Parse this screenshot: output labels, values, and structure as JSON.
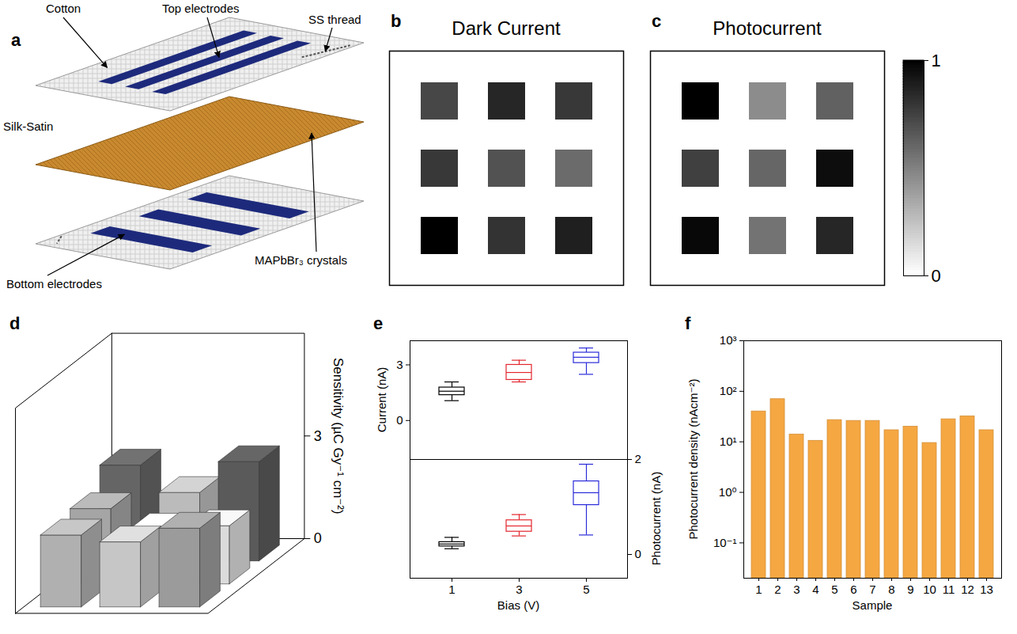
{
  "diagram": {
    "panel": "a",
    "labels": {
      "cotton": "Cotton",
      "top_electrodes": "Top electrodes",
      "ss_thread": "SS thread",
      "silk_satin": "Silk-Satin",
      "crystals": "MAPbBr₃ crystals",
      "bottom_electrodes": "Bottom electrodes"
    }
  },
  "chart_data": [
    {
      "panel": "b",
      "type": "heatmap",
      "title": "Dark Current",
      "cells": [
        [
          0.72,
          0.85,
          0.78
        ],
        [
          0.78,
          0.68,
          0.58
        ],
        [
          1.0,
          0.8,
          0.88
        ]
      ],
      "color_range": [
        0,
        1
      ]
    },
    {
      "panel": "c",
      "type": "heatmap",
      "title": "Photocurrent",
      "cells": [
        [
          1.0,
          0.45,
          0.62
        ],
        [
          0.75,
          0.6,
          0.95
        ],
        [
          0.97,
          0.55,
          0.85
        ]
      ],
      "color_range": [
        0,
        1
      ],
      "color_ticks": [
        0,
        1
      ]
    },
    {
      "panel": "d",
      "type": "bar3d",
      "ylabel": "Sensitivity (µC Gy⁻¹ cm⁻²)",
      "values": [
        [
          2.8,
          2.0,
          2.9
        ],
        [
          2.2,
          1.6,
          1.7
        ],
        [
          2.1,
          1.9,
          2.3
        ]
      ],
      "ylim": [
        0,
        6
      ],
      "yticks": [
        0,
        3
      ]
    },
    {
      "panel": "e",
      "type": "box",
      "xlabel": "Bias (V)",
      "categories": [
        "1",
        "3",
        "5"
      ],
      "colors": [
        "#000000",
        "#e3262d",
        "#2b2bd9"
      ],
      "panels": [
        {
          "ylabel": "Current (nA)",
          "ylim": [
            -2.1,
            4.3
          ],
          "yticks": [
            0,
            3
          ],
          "boxes": [
            {
              "whisker_low": 1.07,
              "q1": 1.37,
              "median": 1.58,
              "q3": 1.78,
              "whisker_high": 2.08
            },
            {
              "whisker_low": 2.08,
              "q1": 2.19,
              "median": 2.59,
              "q3": 3.0,
              "whisker_high": 3.25
            },
            {
              "whisker_low": 2.49,
              "q1": 3.1,
              "median": 3.41,
              "q3": 3.66,
              "whisker_high": 3.91
            }
          ]
        },
        {
          "ylabel": "Photocurrent (nA)",
          "axis": "y2",
          "ylim": [
            -0.5,
            2
          ],
          "yticks": [
            0,
            2
          ],
          "boxes": [
            {
              "whisker_low": 0.12,
              "q1": 0.17,
              "median": 0.22,
              "q3": 0.26,
              "whisker_high": 0.36
            },
            {
              "whisker_low": 0.39,
              "q1": 0.48,
              "median": 0.6,
              "q3": 0.72,
              "whisker_high": 0.84
            },
            {
              "whisker_low": 0.41,
              "q1": 1.04,
              "median": 1.3,
              "q3": 1.54,
              "whisker_high": 1.9
            }
          ]
        }
      ]
    },
    {
      "panel": "f",
      "type": "bar",
      "xlabel": "Sample",
      "ylabel": "Photocurrent density (nAcm⁻²)",
      "categories": [
        "1",
        "2",
        "3",
        "4",
        "5",
        "6",
        "7",
        "8",
        "9",
        "10",
        "11",
        "12",
        "13"
      ],
      "values": [
        40,
        70,
        14,
        10.5,
        27,
        26,
        26,
        17,
        20,
        9.5,
        28,
        32,
        17
      ],
      "color": "#f5a742",
      "log": "y",
      "ylim": [
        0.02,
        1000
      ],
      "yticks": [
        {
          "value": 0.1,
          "label": "10⁻¹"
        },
        {
          "value": 1,
          "label": "10⁰"
        },
        {
          "value": 10,
          "label": "10¹"
        },
        {
          "value": 100,
          "label": "10²"
        },
        {
          "value": 1000,
          "label": "10³"
        }
      ]
    }
  ]
}
